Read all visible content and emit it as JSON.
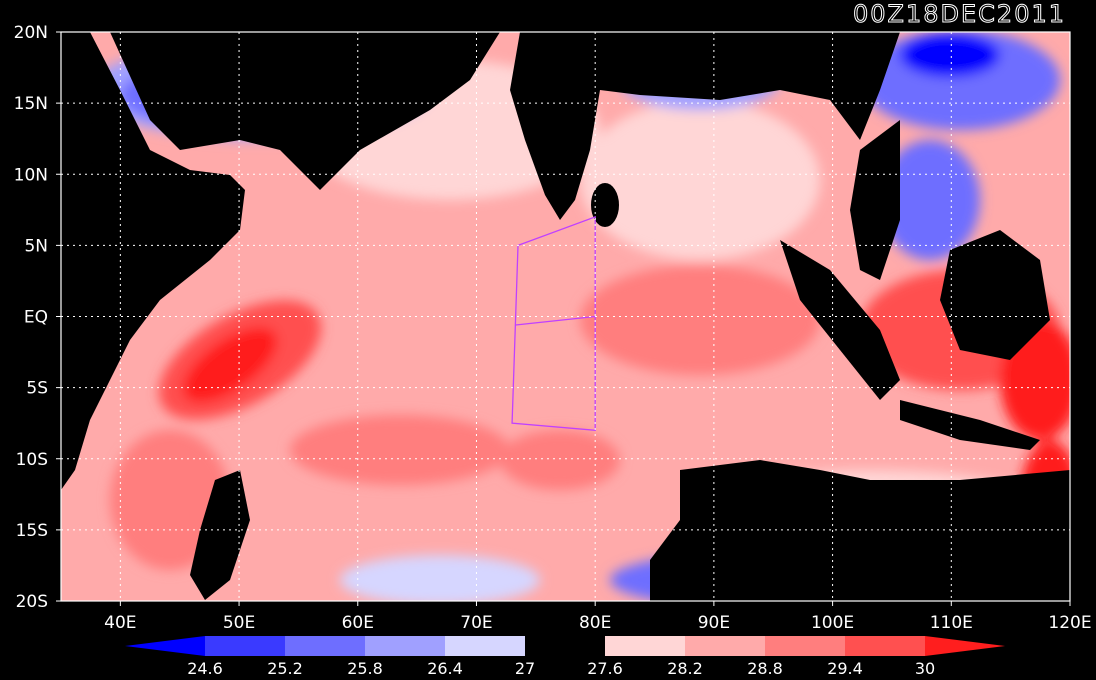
{
  "title": "00Z18DEC2011",
  "map": {
    "lon_range": [
      35,
      120
    ],
    "lat_range": [
      -20,
      20
    ],
    "lon_ticks": [
      {
        "value": 40,
        "label": "40E"
      },
      {
        "value": 50,
        "label": "50E"
      },
      {
        "value": 60,
        "label": "60E"
      },
      {
        "value": 70,
        "label": "70E"
      },
      {
        "value": 80,
        "label": "80E"
      },
      {
        "value": 90,
        "label": "90E"
      },
      {
        "value": 100,
        "label": "100E"
      },
      {
        "value": 110,
        "label": "110E"
      },
      {
        "value": 120,
        "label": "120E"
      }
    ],
    "lat_ticks": [
      {
        "value": 20,
        "label": "20N"
      },
      {
        "value": 15,
        "label": "15N"
      },
      {
        "value": 10,
        "label": "10N"
      },
      {
        "value": 5,
        "label": "5N"
      },
      {
        "value": 0,
        "label": "EQ"
      },
      {
        "value": -5,
        "label": "5S"
      },
      {
        "value": -10,
        "label": "10S"
      },
      {
        "value": -15,
        "label": "15S"
      },
      {
        "value": -20,
        "label": "20S"
      }
    ],
    "grid": true,
    "region_outline": [
      [
        73.5,
        5
      ],
      [
        80,
        7
      ],
      [
        80,
        -8
      ],
      [
        73,
        -7.5
      ]
    ]
  },
  "colorbar": {
    "levels": [
      "24.6",
      "25.2",
      "25.8",
      "26.4",
      "27",
      "27.6",
      "28.2",
      "28.8",
      "29.4",
      "30"
    ],
    "colors": [
      "#0000ff",
      "#3a3aff",
      "#6e6eff",
      "#a0a0ff",
      "#d6d6ff",
      "#000000",
      "#ffd6d6",
      "#ffaaaa",
      "#ff7e7e",
      "#ff5050",
      "#ff1e1e"
    ]
  }
}
